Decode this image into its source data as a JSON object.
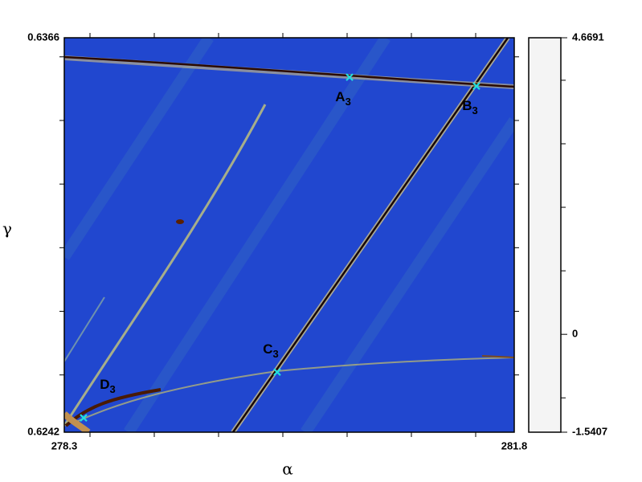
{
  "chart_data": {
    "type": "heatmap",
    "xlabel": "α",
    "ylabel": "γ",
    "xlim": [
      278.3,
      281.8
    ],
    "ylim": [
      0.6242,
      0.6366
    ],
    "xticks": [
      278.3,
      281.8
    ],
    "yticks": [
      0.6242,
      0.6366
    ],
    "x_minor_ticks": [
      278.5,
      279,
      279.5,
      280,
      280.5,
      281,
      281.5
    ],
    "y_minor_ticks": [
      0.626,
      0.628,
      0.63,
      0.632,
      0.634,
      0.636
    ],
    "background": "#2147cf",
    "points": {
      "color": "#22dede",
      "names": [
        "A",
        "B",
        "C",
        "D"
      ],
      "subscripts": [
        "3",
        "3",
        "3",
        "3"
      ],
      "x": [
        280.519,
        281.506,
        279.956,
        278.45
      ],
      "y": [
        0.63536,
        0.63508,
        0.62609,
        0.62465
      ]
    },
    "colorbar": {
      "lim": [
        -1.5407,
        4.6691
      ],
      "ticks": [
        -1.5407,
        0,
        4.6691
      ],
      "minor_ticks": [
        -1,
        1,
        2,
        3,
        4
      ],
      "colormap": [
        {
          "value": -1.5407,
          "color": "#f4f4f4"
        },
        {
          "value": -0.8,
          "color": "#9a9a9a"
        },
        {
          "value": -0.05,
          "color": "#0c0c0c"
        },
        {
          "value": 0,
          "color": "#3a0800"
        },
        {
          "value": 0.5,
          "color": "#7a5020"
        },
        {
          "value": 1.0,
          "color": "#c0a058"
        },
        {
          "value": 1.5,
          "color": "#ecec74"
        },
        {
          "value": 2.1,
          "color": "#a8c080"
        },
        {
          "value": 2.7,
          "color": "#4e9698"
        },
        {
          "value": 3.4,
          "color": "#2c62b8"
        },
        {
          "value": 4.1,
          "color": "#1c3ad8"
        },
        {
          "value": 4.6691,
          "color": "#0c0cf6"
        }
      ]
    }
  }
}
